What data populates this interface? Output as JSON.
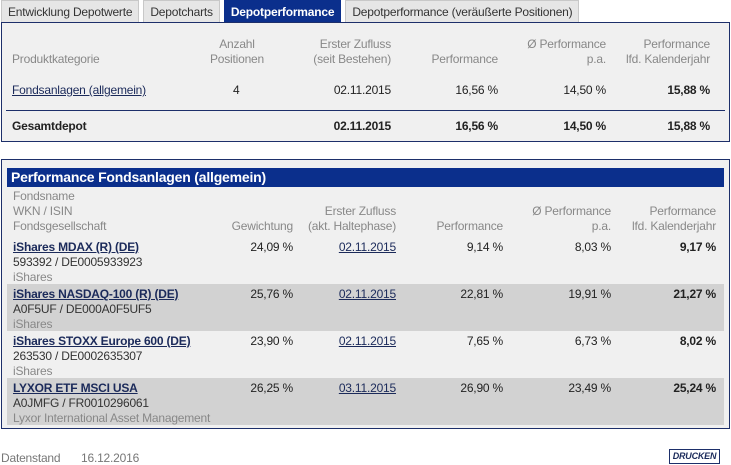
{
  "tabs": [
    "Entwicklung Depotwerte",
    "Depotcharts",
    "Depotperformance",
    "Depotperformance (veräußerte Positionen)"
  ],
  "summary": {
    "headers": {
      "category": "Produktkategorie",
      "count": [
        "Anzahl",
        "Positionen"
      ],
      "first": [
        "Erster Zufluss",
        "(seit Bestehen)"
      ],
      "perf": "Performance",
      "perf_pa": [
        "Ø Performance",
        "p.a."
      ],
      "perf_year": [
        "Performance",
        "lfd. Kalenderjahr"
      ]
    },
    "row": {
      "category": "Fondsanlagen (allgemein)",
      "count": "4",
      "first": "02.11.2015",
      "perf": "16,56 %",
      "perf_pa": "14,50 %",
      "perf_year": "15,88 %"
    },
    "total": {
      "category": "Gesamtdepot",
      "first": "02.11.2015",
      "perf": "16,56 %",
      "perf_pa": "14,50 %",
      "perf_year": "15,88 %"
    }
  },
  "detail": {
    "title": "Performance Fondsanlagen (allgemein)",
    "headers": {
      "name": [
        "Fondsname",
        "WKN / ISIN",
        "Fondsgesellschaft"
      ],
      "weight": "Gewichtung",
      "first": [
        "Erster Zufluss",
        "(akt. Haltephase)"
      ],
      "perf": "Performance",
      "perf_pa": [
        "Ø Performance",
        "p.a."
      ],
      "perf_year": [
        "Performance",
        "lfd. Kalenderjahr"
      ]
    },
    "rows": [
      {
        "name": "iShares MDAX (R) (DE)",
        "ids": "593392 /  DE0005933923",
        "company": "iShares",
        "weight": "24,09 %",
        "first": "02.11.2015",
        "perf": "9,14 %",
        "perf_pa": "8,03 %",
        "perf_year": "9,17 %"
      },
      {
        "name": "iShares NASDAQ-100 (R) (DE)",
        "ids": "A0F5UF /  DE000A0F5UF5",
        "company": "iShares",
        "weight": "25,76 %",
        "first": "02.11.2015",
        "perf": "22,81 %",
        "perf_pa": "19,91 %",
        "perf_year": "21,27 %"
      },
      {
        "name": "iShares STOXX Europe 600 (DE)",
        "ids": "263530 /  DE0002635307",
        "company": "iShares",
        "weight": "23,90 %",
        "first": "02.11.2015",
        "perf": "7,65 %",
        "perf_pa": "6,73 %",
        "perf_year": "8,02 %"
      },
      {
        "name": "LYXOR ETF MSCI USA",
        "ids": "A0JMFG /  FR0010296061",
        "company": "Lyxor International Asset Management",
        "weight": "26,25 %",
        "first": "03.11.2015",
        "perf": "26,90 %",
        "perf_pa": "23,49 %",
        "perf_year": "25,24 %"
      }
    ]
  },
  "footer": {
    "label": "Datenstand",
    "date": "16.12.2016",
    "print": "DRUCKEN"
  }
}
